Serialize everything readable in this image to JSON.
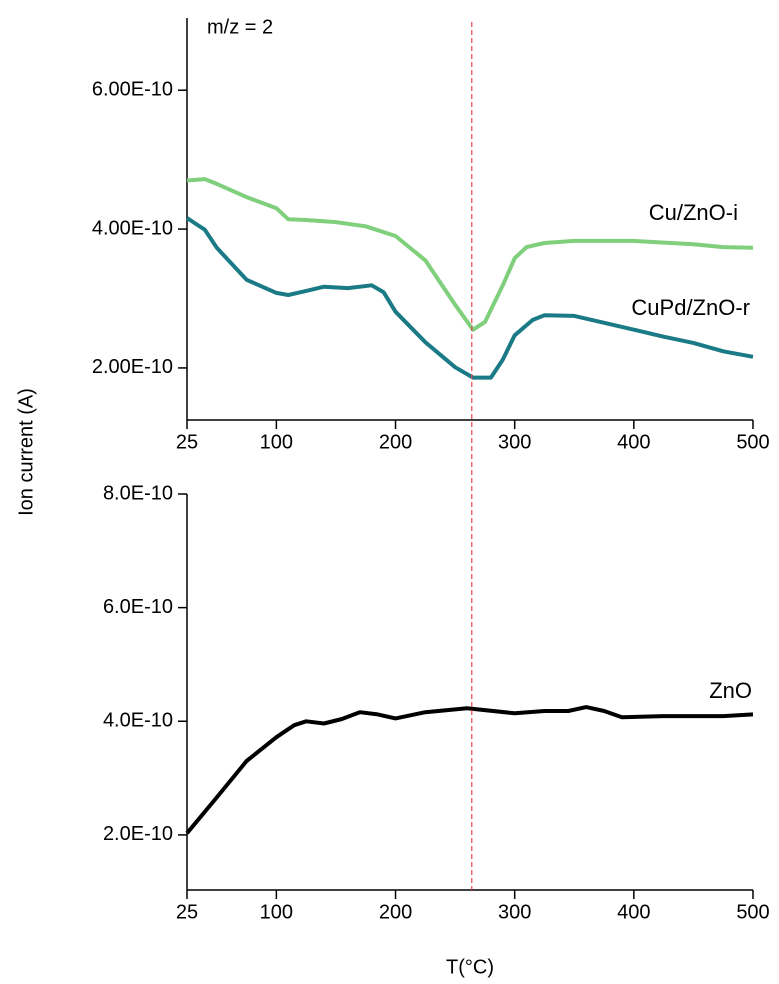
{
  "chart_data": [
    {
      "type": "line",
      "annotation": "m/z = 2",
      "ylabel": "Ion current (A)",
      "reference_x": 264,
      "reference_color": "#e0474c",
      "xlim": [
        25,
        500
      ],
      "xticks": [
        25,
        100,
        200,
        300,
        400,
        500
      ],
      "ylim": [
        1.25e-10,
        7.04e-10
      ],
      "yticks": [
        {
          "value": 2e-10,
          "label": "2.00E-10"
        },
        {
          "value": 4e-10,
          "label": "4.00E-10"
        },
        {
          "value": 6e-10,
          "label": "6.00E-10"
        }
      ],
      "series": [
        {
          "name": "Cu/ZnO-i",
          "color": "#7fcf7c",
          "x": [
            25,
            40,
            50,
            75,
            100,
            110,
            125,
            150,
            175,
            200,
            225,
            250,
            265,
            275,
            290,
            300,
            310,
            325,
            350,
            400,
            450,
            475,
            500
          ],
          "values": [
            4.7e-10,
            4.72e-10,
            4.65e-10,
            4.46e-10,
            4.3e-10,
            4.14e-10,
            4.13e-10,
            4.1e-10,
            4.04e-10,
            3.9e-10,
            3.55e-10,
            2.91e-10,
            2.55e-10,
            2.66e-10,
            3.19e-10,
            3.58e-10,
            3.74e-10,
            3.8e-10,
            3.83e-10,
            3.83e-10,
            3.78e-10,
            3.74e-10,
            3.73e-10
          ]
        },
        {
          "name": "CuPd/ZnO-r",
          "color": "#1a7a85",
          "x": [
            25,
            40,
            50,
            75,
            100,
            110,
            125,
            140,
            160,
            180,
            190,
            200,
            225,
            250,
            265,
            280,
            290,
            300,
            315,
            325,
            350,
            375,
            400,
            425,
            450,
            475,
            500
          ],
          "values": [
            4.16e-10,
            3.99e-10,
            3.73e-10,
            3.27e-10,
            3.08e-10,
            3.05e-10,
            3.11e-10,
            3.17e-10,
            3.15e-10,
            3.19e-10,
            3.09e-10,
            2.81e-10,
            2.37e-10,
            2.01e-10,
            1.86e-10,
            1.86e-10,
            2.12e-10,
            2.47e-10,
            2.69e-10,
            2.76e-10,
            2.75e-10,
            2.65e-10,
            2.55e-10,
            2.45e-10,
            2.36e-10,
            2.24e-10,
            2.16e-10
          ]
        }
      ]
    },
    {
      "type": "line",
      "xlabel": "T(°C)",
      "xlim": [
        25,
        500
      ],
      "xticks": [
        25,
        100,
        200,
        300,
        400,
        500
      ],
      "ylim": [
        1.03e-10,
        8e-10
      ],
      "yticks": [
        {
          "value": 2e-10,
          "label": "2.0E-10"
        },
        {
          "value": 4e-10,
          "label": "4.0E-10"
        },
        {
          "value": 6e-10,
          "label": "6.0E-10"
        },
        {
          "value": 8e-10,
          "label": "8.0E-10"
        }
      ],
      "series": [
        {
          "name": "ZnO",
          "color": "#000000",
          "x": [
            25,
            50,
            75,
            100,
            115,
            125,
            140,
            155,
            170,
            185,
            200,
            225,
            260,
            300,
            325,
            345,
            360,
            375,
            390,
            425,
            475,
            500
          ],
          "values": [
            2.03e-10,
            2.66e-10,
            3.3e-10,
            3.72e-10,
            3.93e-10,
            4e-10,
            3.96e-10,
            4.04e-10,
            4.16e-10,
            4.12e-10,
            4.05e-10,
            4.16e-10,
            4.23e-10,
            4.14e-10,
            4.18e-10,
            4.18e-10,
            4.25e-10,
            4.18e-10,
            4.07e-10,
            4.09e-10,
            4.09e-10,
            4.12e-10
          ]
        }
      ]
    }
  ]
}
